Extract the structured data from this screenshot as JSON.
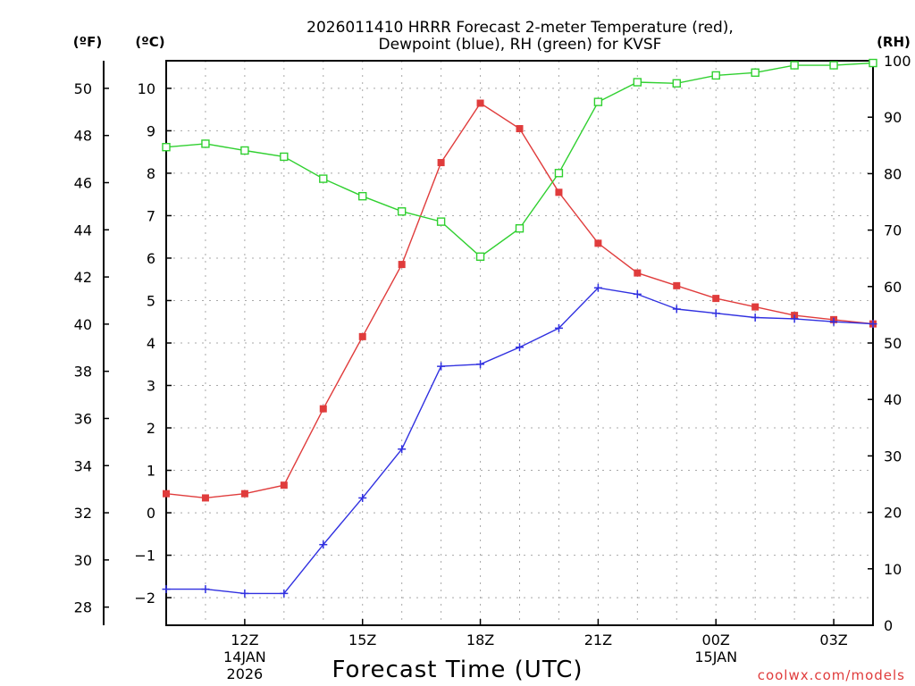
{
  "chart_data": {
    "type": "line",
    "title_lines": [
      "2026011410 HRRR Forecast 2-meter Temperature (red),",
      "Dewpoint (blue), RH (green) for KVSF"
    ],
    "units": {
      "fahrenheit": "(ºF)",
      "celsius": "(ºC)",
      "rh": "(RH)"
    },
    "xlabel": "Forecast Time (UTC)",
    "credit": "coolwx.com/models",
    "x_hours": [
      10,
      11,
      12,
      13,
      14,
      15,
      16,
      17,
      18,
      19,
      20,
      21,
      22,
      23,
      24,
      25,
      26,
      27,
      28
    ],
    "xlim": [
      10,
      28
    ],
    "x_ticks": [
      {
        "hour": 12,
        "lines": [
          "12Z",
          "14JAN",
          "2026"
        ]
      },
      {
        "hour": 15,
        "lines": [
          "15Z"
        ]
      },
      {
        "hour": 18,
        "lines": [
          "18Z"
        ]
      },
      {
        "hour": 21,
        "lines": [
          "21Z"
        ]
      },
      {
        "hour": 24,
        "lines": [
          "00Z",
          "15JAN"
        ]
      },
      {
        "hour": 27,
        "lines": [
          "03Z"
        ]
      }
    ],
    "y_celsius": {
      "lim": [
        -2.65,
        10.65
      ],
      "ticks": [
        10,
        9,
        8,
        7,
        6,
        5,
        4,
        3,
        2,
        1,
        0,
        -1,
        -2
      ]
    },
    "y_fahrenheit": {
      "ticks": [
        50,
        48,
        46,
        44,
        42,
        40,
        38,
        36,
        34,
        32,
        30,
        28
      ]
    },
    "y_rh": {
      "lim": [
        0,
        100
      ],
      "ticks": [
        100,
        90,
        80,
        70,
        60,
        50,
        40,
        30,
        20,
        10,
        0
      ]
    },
    "series": [
      {
        "name": "2-meter Temperature",
        "axis": "celsius",
        "color": "#e03c3c",
        "marker": "filled-square",
        "values": [
          0.45,
          0.35,
          0.45,
          0.65,
          2.45,
          4.15,
          5.85,
          8.25,
          9.65,
          9.05,
          7.55,
          6.35,
          5.65,
          5.35,
          5.05,
          4.85,
          4.65,
          4.55,
          4.45
        ]
      },
      {
        "name": "Dewpoint",
        "axis": "celsius",
        "color": "#3030e0",
        "marker": "plus",
        "values": [
          -1.8,
          -1.8,
          -1.9,
          -1.9,
          -0.75,
          0.35,
          1.5,
          3.45,
          3.5,
          3.9,
          4.35,
          5.3,
          5.15,
          4.8,
          4.7,
          4.6,
          4.57,
          4.5,
          4.45
        ]
      },
      {
        "name": "RH",
        "axis": "rh",
        "color": "#30d030",
        "marker": "open-square",
        "values": [
          84.7,
          85.3,
          84.1,
          83.0,
          79.1,
          76.0,
          73.3,
          71.5,
          65.3,
          70.3,
          80.1,
          92.7,
          96.2,
          96.0,
          97.4,
          97.9,
          99.2,
          99.2,
          99.6
        ]
      }
    ]
  }
}
